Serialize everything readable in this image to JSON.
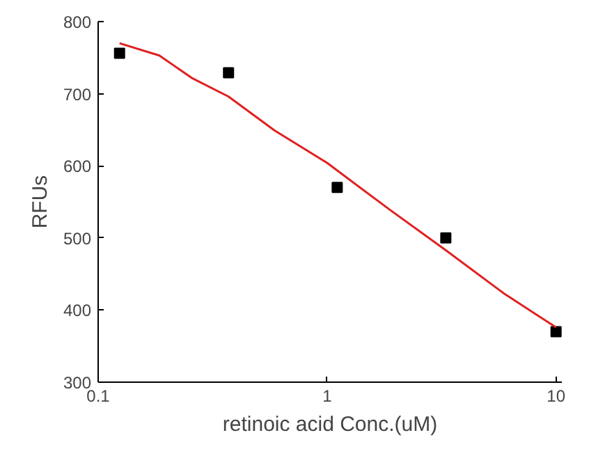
{
  "chart_data": {
    "type": "scatter",
    "xlabel": "retinoic acid Conc.(uM)",
    "ylabel": "RFUs",
    "log": "x",
    "xlim": [
      0.1,
      10.6
    ],
    "ylim": [
      300,
      800
    ],
    "xticks": [
      0.1,
      1,
      10
    ],
    "yticks": [
      300,
      400,
      500,
      600,
      700,
      800
    ],
    "grid": false,
    "series": [
      {
        "marker": "square",
        "color": "#000000",
        "x": [
          0.124,
          0.371,
          1.107,
          3.3,
          10
        ],
        "values": [
          756,
          729,
          570,
          500,
          370
        ]
      },
      {
        "type": "line",
        "line_style": "solid",
        "marker": "none",
        "color": "#e02020",
        "x": [
          0.124,
          0.185,
          0.256,
          0.371,
          0.59,
          1,
          1.88,
          3.3,
          5.98,
          10
        ],
        "values": [
          770,
          753,
          722,
          696,
          649,
          604,
          539,
          483,
          422,
          376
        ]
      }
    ]
  }
}
